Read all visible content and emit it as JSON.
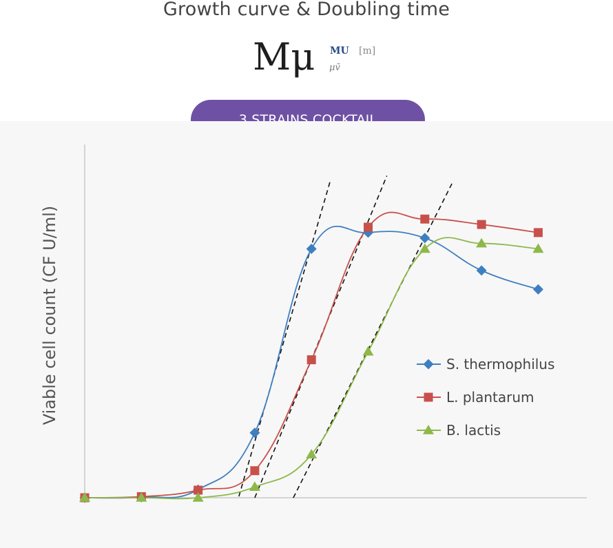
{
  "header": {
    "title": "Growth curve & Doubling time",
    "logo_main": "Mμ",
    "logo_mu": "MU",
    "logo_m": "[m]",
    "logo_sub": "μṽ",
    "pill_label": "3 STRAINS COCKTAIL"
  },
  "colors": {
    "pill": "#6e51a4",
    "s_thermophilus": "#3f7fbf",
    "l_plantarum": "#c8504b",
    "b_lactis": "#8db84a",
    "axis": "#c8c8c8",
    "tangent": "#111111"
  },
  "chart_data": {
    "type": "line",
    "title": "",
    "xlabel": "",
    "ylabel": "Viable cell count (CF U/ml)",
    "x": [
      0,
      1,
      2,
      3,
      4,
      5,
      6,
      7,
      8
    ],
    "xlim": [
      0,
      9
    ],
    "ylim": [
      0,
      100
    ],
    "grid": false,
    "legend_position": "right-middle",
    "smooth": true,
    "series": [
      {
        "name": "S. thermophilus",
        "marker": "diamond",
        "color_key": "s_thermophilus",
        "values": [
          0,
          0.2,
          3.0,
          24,
          92,
          98,
          96,
          84,
          77
        ]
      },
      {
        "name": "L. plantarum",
        "marker": "square",
        "color_key": "l_plantarum",
        "values": [
          0,
          0.4,
          2.8,
          10,
          51,
          100,
          103,
          101,
          98
        ]
      },
      {
        "name": "B. lactis",
        "marker": "triangle",
        "color_key": "b_lactis",
        "values": [
          0,
          0,
          0,
          4,
          16,
          54,
          92,
          94,
          92
        ]
      }
    ],
    "tangents": [
      {
        "x1": 2.72,
        "y1": 0.5,
        "x2": 4.33,
        "y2": 117
      },
      {
        "x1": 3.0,
        "y1": 0,
        "x2": 5.33,
        "y2": 119
      },
      {
        "x1": 3.68,
        "y1": 0,
        "x2": 6.5,
        "y2": 117
      }
    ]
  }
}
